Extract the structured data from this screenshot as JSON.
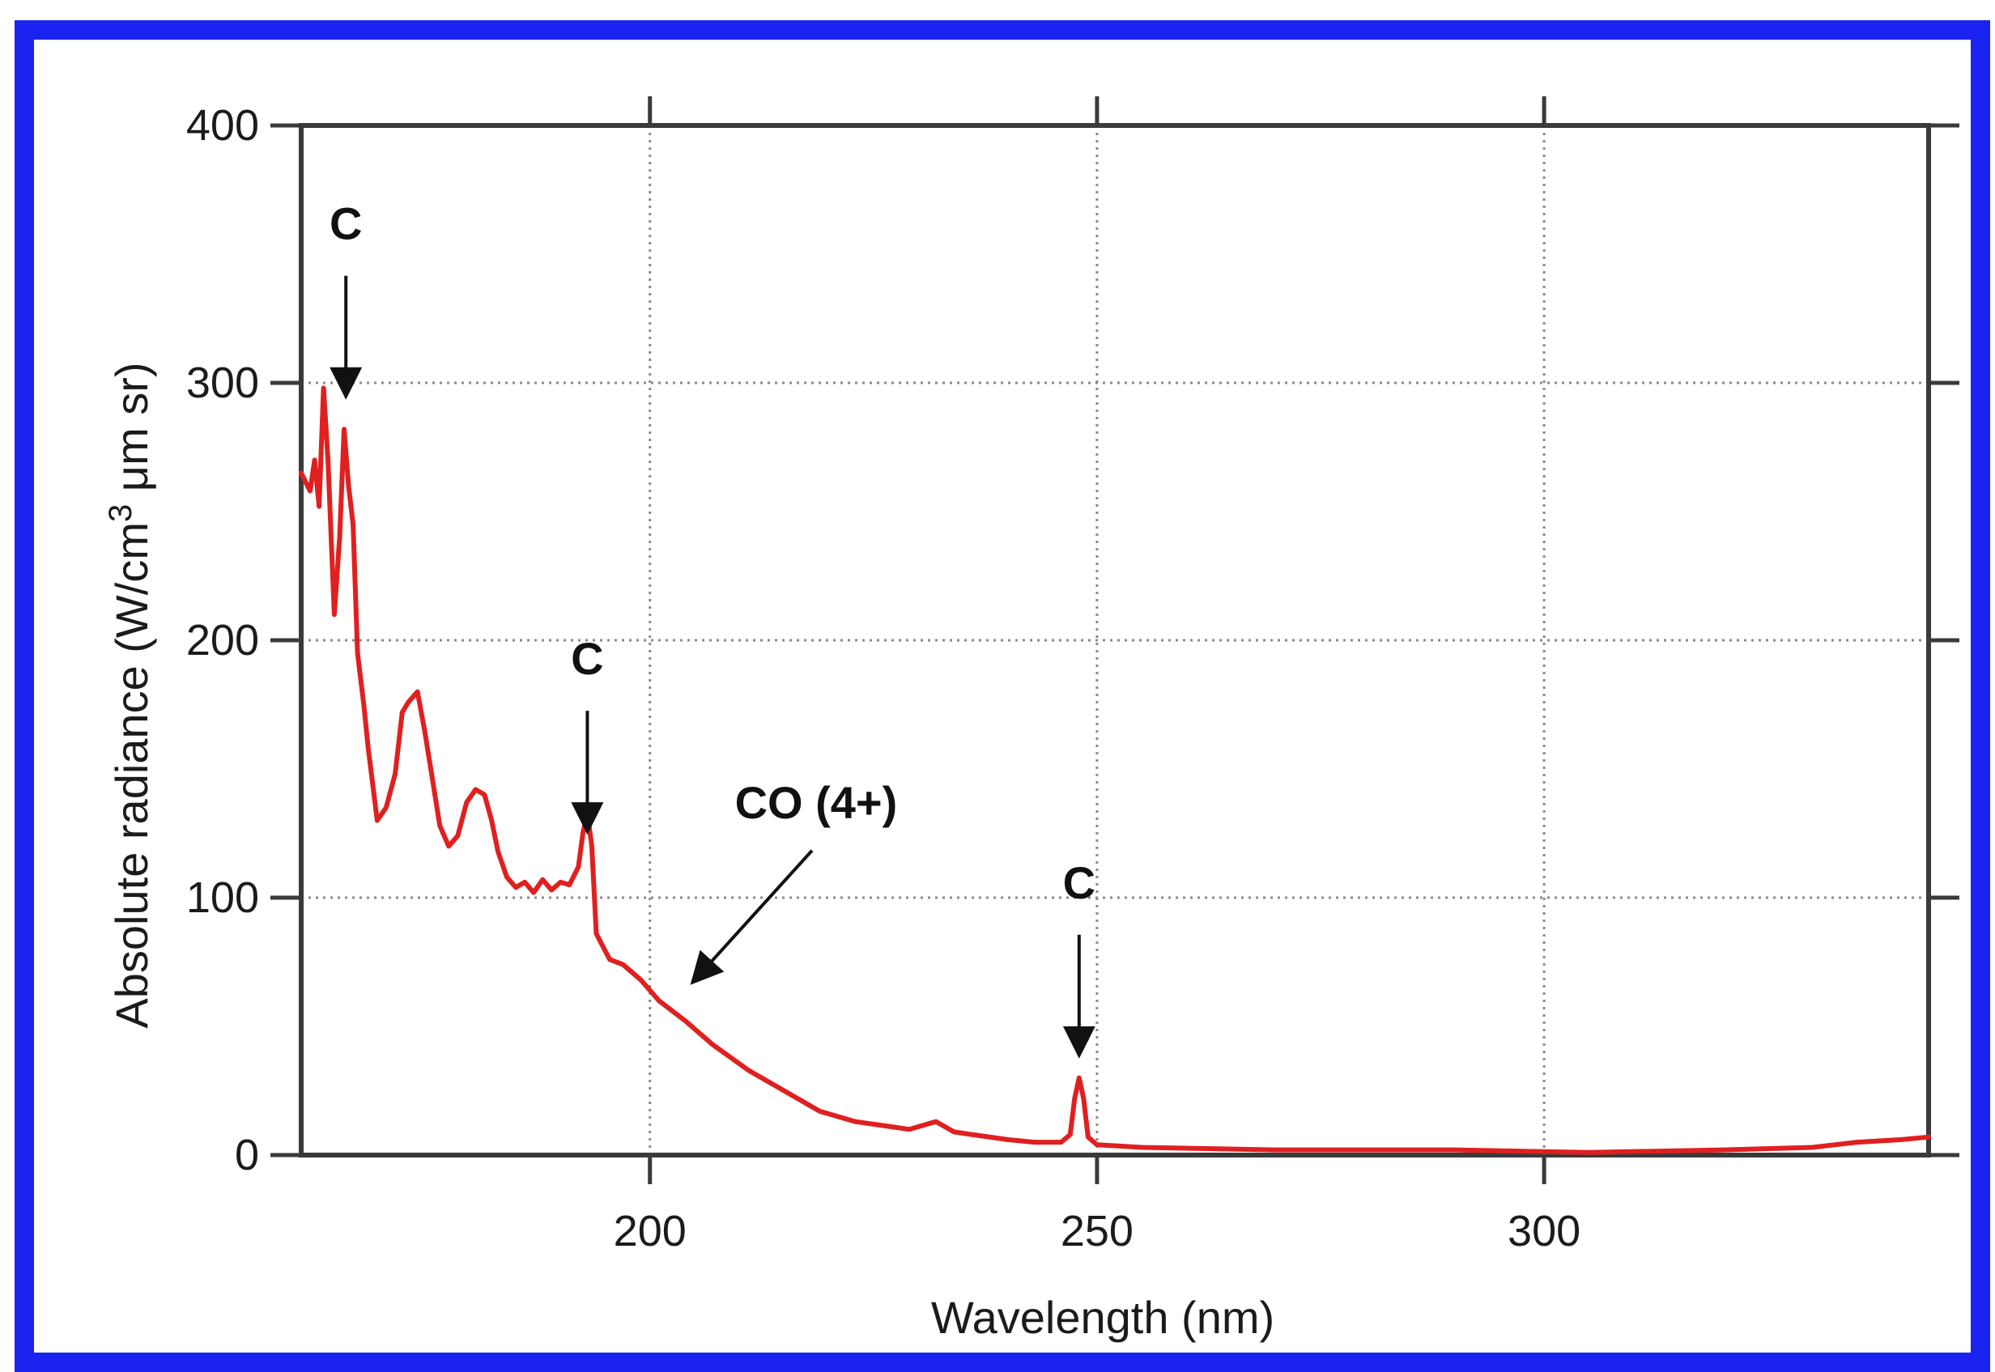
{
  "chart_data": {
    "type": "line",
    "xlabel": "Wavelength (nm)",
    "ylabel_parts": [
      "Absolute radiance (W/cm",
      "3",
      " μm sr)"
    ],
    "xlim": [
      161,
      343
    ],
    "ylim": [
      0,
      400
    ],
    "x_ticks": [
      200,
      250,
      300
    ],
    "y_ticks": [
      0,
      100,
      200,
      300,
      400
    ],
    "grid": true,
    "series": [
      {
        "color": "#e02020",
        "x": [
          161,
          162,
          162.5,
          163,
          163.5,
          164,
          164.7,
          165.3,
          165.8,
          166.3,
          166.8,
          167.3,
          168,
          168.5,
          169.5,
          170.5,
          171.5,
          172.3,
          173,
          174,
          174.8,
          175.5,
          176.5,
          177.5,
          178.5,
          179.5,
          180.5,
          181.5,
          182.3,
          183,
          184,
          185,
          186,
          187,
          188,
          189,
          190,
          191,
          192,
          192.5,
          193,
          193.5,
          194,
          194.6,
          195.5,
          197,
          199,
          201,
          204,
          207,
          211,
          215,
          219,
          223,
          227,
          229,
          231,
          232,
          233,
          234,
          236,
          240,
          243,
          246,
          247,
          247.5,
          248,
          248.5,
          249,
          250,
          255,
          270,
          290,
          305,
          320,
          330,
          335,
          340,
          343
        ],
        "y": [
          265,
          258,
          270,
          252,
          298,
          270,
          210,
          240,
          282,
          260,
          245,
          195,
          175,
          158,
          130,
          135,
          148,
          172,
          176,
          180,
          165,
          150,
          128,
          120,
          124,
          137,
          142,
          140,
          130,
          118,
          108,
          104,
          106,
          102,
          107,
          103,
          106,
          105,
          112,
          125,
          133,
          120,
          86,
          82,
          76,
          74,
          68,
          60,
          52,
          43,
          33,
          25,
          17,
          13,
          11,
          10,
          12,
          13,
          11,
          9,
          8,
          6,
          5,
          5,
          8,
          22,
          30,
          22,
          7,
          4,
          3,
          2,
          2,
          1,
          2,
          3,
          5,
          6,
          7
        ]
      }
    ],
    "annotations": [
      {
        "text": "C",
        "x": 166,
        "y": 296
      },
      {
        "text": "C",
        "x": 193,
        "y": 127
      },
      {
        "text": "C",
        "x": 248,
        "y": 40
      },
      {
        "text": "CO (4+)",
        "x": 205,
        "y": 68
      }
    ]
  }
}
